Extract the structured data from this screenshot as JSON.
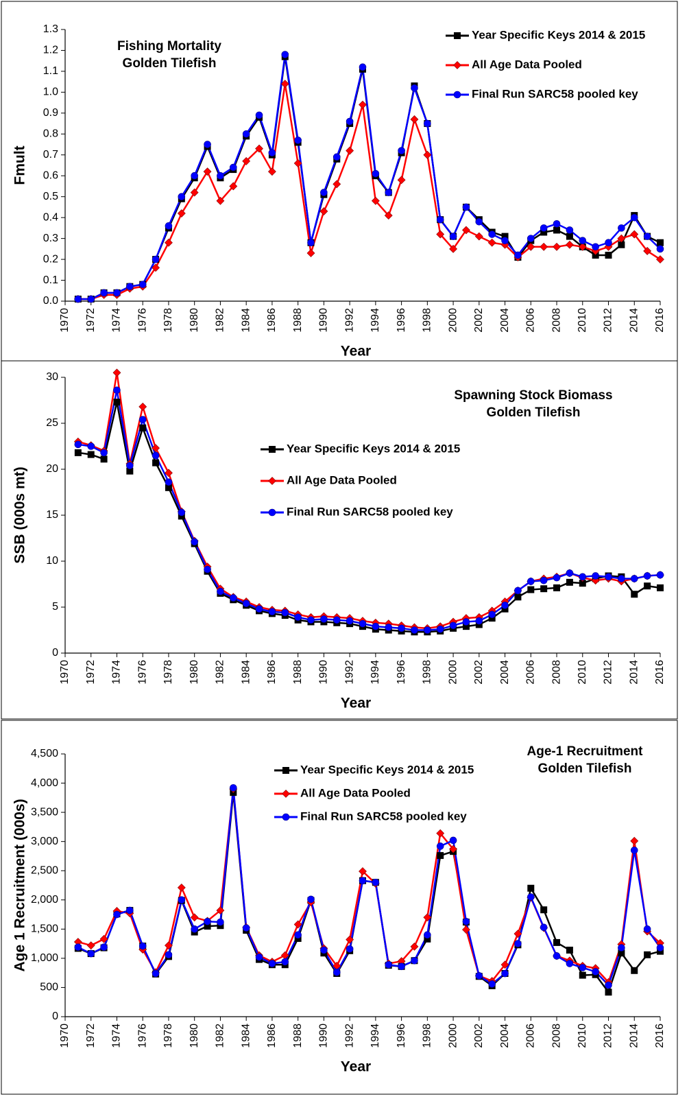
{
  "chart_data": [
    {
      "type": "line",
      "title": "Fishing Mortality",
      "subtitle": "Golden Tilefish",
      "x_label": "Year",
      "y_label": "Fmult",
      "x": [
        1971,
        1972,
        1973,
        1974,
        1975,
        1976,
        1977,
        1978,
        1979,
        1980,
        1981,
        1982,
        1983,
        1984,
        1985,
        1986,
        1987,
        1988,
        1989,
        1990,
        1991,
        1992,
        1993,
        1994,
        1995,
        1996,
        1997,
        1998,
        1999,
        2000,
        2001,
        2002,
        2003,
        2004,
        2005,
        2006,
        2007,
        2008,
        2009,
        2010,
        2011,
        2012,
        2013,
        2014,
        2015,
        2016
      ],
      "xlim": [
        1970,
        2016
      ],
      "xticks": [
        1970,
        1972,
        1974,
        1976,
        1978,
        1980,
        1982,
        1984,
        1986,
        1988,
        1990,
        1992,
        1994,
        1996,
        1998,
        2000,
        2002,
        2004,
        2006,
        2008,
        2010,
        2012,
        2014,
        2016
      ],
      "ylim": [
        0,
        1.3
      ],
      "yticks": [
        {
          "value": 0,
          "label": "0.0"
        },
        {
          "value": 0.1,
          "label": "0.1"
        },
        {
          "value": 0.2,
          "label": "0.2"
        },
        {
          "value": 0.3,
          "label": "0.3"
        },
        {
          "value": 0.4,
          "label": "0.4"
        },
        {
          "value": 0.5,
          "label": "0.5"
        },
        {
          "value": 0.6,
          "label": "0.6"
        },
        {
          "value": 0.7,
          "label": "0.7"
        },
        {
          "value": 0.8,
          "label": "0.8"
        },
        {
          "value": 0.9,
          "label": "0.9"
        },
        {
          "value": 1,
          "label": "1.0"
        },
        {
          "value": 1.1,
          "label": "1.1"
        },
        {
          "value": 1.2,
          "label": "1.2"
        },
        {
          "value": 1.3,
          "label": "1.3"
        }
      ],
      "grid": false,
      "series": [
        {
          "name": "Year Specific Keys 2014 & 2015",
          "color": "#000000",
          "marker": "square",
          "values": [
            0.01,
            0.01,
            0.04,
            0.04,
            0.07,
            0.08,
            0.2,
            0.35,
            0.49,
            0.59,
            0.74,
            0.59,
            0.63,
            0.79,
            0.88,
            0.7,
            1.17,
            0.76,
            0.28,
            0.51,
            0.68,
            0.85,
            1.11,
            0.6,
            0.52,
            0.71,
            1.03,
            0.85,
            0.39,
            0.31,
            0.45,
            0.39,
            0.33,
            0.31,
            0.21,
            0.29,
            0.33,
            0.34,
            0.31,
            0.26,
            0.22,
            0.22,
            0.27,
            0.41,
            0.31,
            0.28
          ]
        },
        {
          "name": "All Age Data Pooled",
          "color": "#ff0000",
          "marker": "diamond",
          "values": [
            0.01,
            0.01,
            0.03,
            0.03,
            0.06,
            0.07,
            0.16,
            0.28,
            0.42,
            0.52,
            0.62,
            0.48,
            0.55,
            0.67,
            0.73,
            0.62,
            1.04,
            0.66,
            0.23,
            0.43,
            0.56,
            0.72,
            0.94,
            0.48,
            0.41,
            0.58,
            0.87,
            0.7,
            0.32,
            0.25,
            0.34,
            0.31,
            0.28,
            0.27,
            0.21,
            0.26,
            0.26,
            0.26,
            0.27,
            0.26,
            0.24,
            0.26,
            0.3,
            0.32,
            0.24,
            0.2
          ]
        },
        {
          "name": "Final Run SARC58 pooled key",
          "color": "#0000ff",
          "marker": "circle",
          "values": [
            0.01,
            0.01,
            0.04,
            0.04,
            0.07,
            0.08,
            0.2,
            0.36,
            0.5,
            0.6,
            0.75,
            0.6,
            0.64,
            0.8,
            0.89,
            0.71,
            1.18,
            0.77,
            0.28,
            0.52,
            0.69,
            0.86,
            1.12,
            0.61,
            0.52,
            0.72,
            1.02,
            0.85,
            0.39,
            0.31,
            0.45,
            0.38,
            0.32,
            0.29,
            0.22,
            0.3,
            0.35,
            0.37,
            0.34,
            0.29,
            0.26,
            0.28,
            0.35,
            0.4,
            0.31,
            0.25
          ]
        }
      ]
    },
    {
      "type": "line",
      "title": "Spawning Stock Biomass",
      "subtitle": "Golden Tilefish",
      "x_label": "Year",
      "y_label": "SSB (000s mt)",
      "x": [
        1971,
        1972,
        1973,
        1974,
        1975,
        1976,
        1977,
        1978,
        1979,
        1980,
        1981,
        1982,
        1983,
        1984,
        1985,
        1986,
        1987,
        1988,
        1989,
        1990,
        1991,
        1992,
        1993,
        1994,
        1995,
        1996,
        1997,
        1998,
        1999,
        2000,
        2001,
        2002,
        2003,
        2004,
        2005,
        2006,
        2007,
        2008,
        2009,
        2010,
        2011,
        2012,
        2013,
        2014,
        2015,
        2016
      ],
      "xlim": [
        1970,
        2016
      ],
      "xticks": [
        1970,
        1972,
        1974,
        1976,
        1978,
        1980,
        1982,
        1984,
        1986,
        1988,
        1990,
        1992,
        1994,
        1996,
        1998,
        2000,
        2002,
        2004,
        2006,
        2008,
        2010,
        2012,
        2014,
        2016
      ],
      "ylim": [
        0,
        30
      ],
      "yticks": [
        0,
        5,
        10,
        15,
        20,
        25,
        30
      ],
      "grid": false,
      "series": [
        {
          "name": "Year Specific Keys 2014 & 2015",
          "color": "#000000",
          "marker": "square",
          "values": [
            21.8,
            21.6,
            21.1,
            27.3,
            19.8,
            24.5,
            20.7,
            18.0,
            14.9,
            11.9,
            8.9,
            6.5,
            5.8,
            5.2,
            4.6,
            4.3,
            4.1,
            3.6,
            3.4,
            3.4,
            3.3,
            3.2,
            2.9,
            2.6,
            2.5,
            2.4,
            2.3,
            2.3,
            2.4,
            2.7,
            2.9,
            3.1,
            3.8,
            4.8,
            6.1,
            6.9,
            7.0,
            7.1,
            7.7,
            7.6,
            8.1,
            8.4,
            8.3,
            6.4,
            7.3,
            7.1
          ]
        },
        {
          "name": "All Age Data Pooled",
          "color": "#ff0000",
          "marker": "diamond",
          "values": [
            23.0,
            22.6,
            22.0,
            30.5,
            20.6,
            26.8,
            22.3,
            19.6,
            15.4,
            12.2,
            9.4,
            7.0,
            6.1,
            5.6,
            5.0,
            4.7,
            4.6,
            4.2,
            3.9,
            4.0,
            3.9,
            3.8,
            3.5,
            3.3,
            3.2,
            3.0,
            2.8,
            2.7,
            2.9,
            3.4,
            3.8,
            3.9,
            4.6,
            5.6,
            6.8,
            7.8,
            8.1,
            8.3,
            8.7,
            8.2,
            7.9,
            8.1,
            7.8,
            8.1,
            8.4,
            8.5
          ]
        },
        {
          "name": "Final Run SARC58 pooled key",
          "color": "#0000ff",
          "marker": "circle",
          "values": [
            22.7,
            22.5,
            21.8,
            28.6,
            20.4,
            25.4,
            21.5,
            18.6,
            15.3,
            12.1,
            9.1,
            6.7,
            6.0,
            5.4,
            4.8,
            4.5,
            4.4,
            3.9,
            3.6,
            3.7,
            3.6,
            3.5,
            3.2,
            2.9,
            2.8,
            2.7,
            2.5,
            2.5,
            2.6,
            3.0,
            3.4,
            3.5,
            4.2,
            5.2,
            6.8,
            7.8,
            7.9,
            8.2,
            8.7,
            8.3,
            8.4,
            8.3,
            8.1,
            8.1,
            8.4,
            8.5
          ]
        }
      ]
    },
    {
      "type": "line",
      "title": "Age-1 Recruitment",
      "subtitle": "Golden Tilefish",
      "x_label": "Year",
      "y_label": "Age 1 Recruitment (000s)",
      "x": [
        1971,
        1972,
        1973,
        1974,
        1975,
        1976,
        1977,
        1978,
        1979,
        1980,
        1981,
        1982,
        1983,
        1984,
        1985,
        1986,
        1987,
        1988,
        1989,
        1990,
        1991,
        1992,
        1993,
        1994,
        1995,
        1996,
        1997,
        1998,
        1999,
        2000,
        2001,
        2002,
        2003,
        2004,
        2005,
        2006,
        2007,
        2008,
        2009,
        2010,
        2011,
        2012,
        2013,
        2014,
        2015,
        2016
      ],
      "xlim": [
        1970,
        2016
      ],
      "xticks": [
        1970,
        1972,
        1974,
        1976,
        1978,
        1980,
        1982,
        1984,
        1986,
        1988,
        1990,
        1992,
        1994,
        1996,
        1998,
        2000,
        2002,
        2004,
        2006,
        2008,
        2010,
        2012,
        2014,
        2016
      ],
      "ylim": [
        0,
        4500
      ],
      "yticks": [
        0,
        500,
        {
          "value": 1000,
          "label": "1,000"
        },
        {
          "value": 1500,
          "label": "1,500"
        },
        {
          "value": 2000,
          "label": "2,000"
        },
        {
          "value": 2500,
          "label": "2,500"
        },
        {
          "value": 3000,
          "label": "3,000"
        },
        {
          "value": 3500,
          "label": "3,500"
        },
        {
          "value": 4000,
          "label": "4,000"
        },
        {
          "value": 4500,
          "label": "4,500"
        }
      ],
      "grid": false,
      "series": [
        {
          "name": "Year Specific Keys 2014 & 2015",
          "color": "#000000",
          "marker": "square",
          "values": [
            1170,
            1080,
            1180,
            1760,
            1820,
            1210,
            730,
            1030,
            1990,
            1450,
            1550,
            1560,
            3840,
            1480,
            980,
            890,
            890,
            1340,
            1990,
            1090,
            740,
            1130,
            2330,
            2300,
            880,
            860,
            960,
            1330,
            2760,
            2830,
            1620,
            690,
            530,
            740,
            1230,
            2200,
            1830,
            1270,
            1140,
            710,
            720,
            420,
            1090,
            790,
            1060,
            1120
          ]
        },
        {
          "name": "All Age Data Pooled",
          "color": "#ff0000",
          "marker": "diamond",
          "values": [
            1280,
            1220,
            1330,
            1810,
            1770,
            1150,
            760,
            1220,
            2210,
            1700,
            1640,
            1820,
            3900,
            1530,
            1050,
            940,
            1050,
            1580,
            1960,
            1170,
            870,
            1320,
            2490,
            2280,
            910,
            950,
            1200,
            1700,
            3140,
            2870,
            1490,
            700,
            610,
            890,
            1420,
            2040,
            1520,
            1040,
            960,
            870,
            830,
            590,
            1240,
            3010,
            1460,
            1260
          ]
        },
        {
          "name": "Final Run SARC58 pooled key",
          "color": "#0000ff",
          "marker": "circle",
          "values": [
            1190,
            1080,
            1190,
            1750,
            1820,
            1210,
            740,
            1060,
            2000,
            1500,
            1630,
            1620,
            3920,
            1520,
            1020,
            910,
            940,
            1400,
            2010,
            1140,
            760,
            1160,
            2330,
            2300,
            890,
            860,
            960,
            1400,
            2920,
            3020,
            1630,
            700,
            560,
            740,
            1250,
            2050,
            1530,
            1040,
            910,
            840,
            770,
            540,
            1180,
            2850,
            1500,
            1180
          ]
        }
      ]
    }
  ]
}
